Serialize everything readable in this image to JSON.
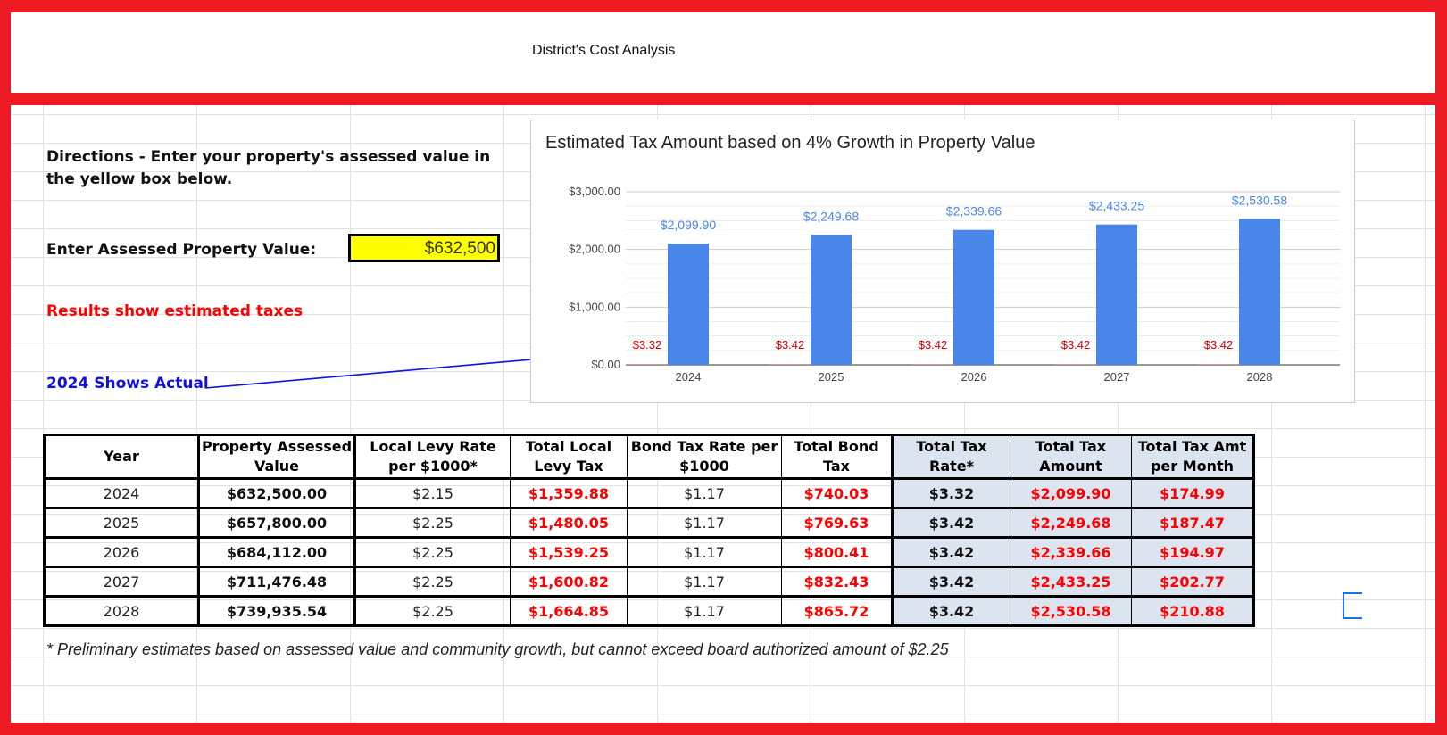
{
  "header": {
    "title": "District's Cost Analysis"
  },
  "form": {
    "directions": "Directions - Enter your property's assessed value in the yellow box below.",
    "assessed_label": "Enter Assessed Property Value:",
    "assessed_value": "$632,500",
    "results_note": "Results show estimated taxes",
    "actual_note": "2024 Shows Actual"
  },
  "chart_data": {
    "type": "bar",
    "title": "Estimated Tax Amount based on 4% Growth in Property Value",
    "categories": [
      "2024",
      "2025",
      "2026",
      "2027",
      "2028"
    ],
    "series": [
      {
        "values": [
          3.32,
          3.42,
          3.42,
          3.42,
          3.42
        ],
        "labels": [
          "$3.32",
          "$3.42",
          "$3.42",
          "$3.42",
          "$3.42"
        ],
        "color": "#db4437"
      },
      {
        "values": [
          2099.9,
          2249.68,
          2339.66,
          2433.25,
          2530.58
        ],
        "labels": [
          "$2,099.90",
          "$2,249.68",
          "$2,339.66",
          "$2,433.25",
          "$2,530.58"
        ],
        "color": "#4a86e8"
      }
    ],
    "yticks": [
      "$0.00",
      "$1,000.00",
      "$2,000.00",
      "$3,000.00"
    ],
    "ylim": [
      0,
      3000
    ],
    "grid": true
  },
  "table": {
    "headers": [
      "Year",
      "Property Assessed Value",
      "Local Levy Rate per $1000*",
      "Total Local Levy Tax",
      "Bond Tax Rate per $1000",
      "Total Bond Tax",
      "Total Tax Rate*",
      "Total Tax Amount",
      "Total Tax Amt per Month"
    ],
    "rows": [
      [
        "2024",
        "$632,500.00",
        "$2.15",
        "$1,359.88",
        "$1.17",
        "$740.03",
        "$3.32",
        "$2,099.90",
        "$174.99"
      ],
      [
        "2025",
        "$657,800.00",
        "$2.25",
        "$1,480.05",
        "$1.17",
        "$769.63",
        "$3.42",
        "$2,249.68",
        "$187.47"
      ],
      [
        "2026",
        "$684,112.00",
        "$2.25",
        "$1,539.25",
        "$1.17",
        "$800.41",
        "$3.42",
        "$2,339.66",
        "$194.97"
      ],
      [
        "2027",
        "$711,476.48",
        "$2.25",
        "$1,600.82",
        "$1.17",
        "$832.43",
        "$3.42",
        "$2,433.25",
        "$202.77"
      ],
      [
        "2028",
        "$739,935.54",
        "$2.25",
        "$1,664.85",
        "$1.17",
        "$865.72",
        "$3.42",
        "$2,530.58",
        "$210.88"
      ]
    ]
  },
  "footnote": "* Preliminary estimates based on assessed value and community growth, but cannot exceed board authorized amount of $2.25",
  "colors": {
    "frame": "#ed1c24",
    "input_bg": "#ffff00",
    "summary_bg": "#dce4f0",
    "arrow": "#1010e0"
  }
}
